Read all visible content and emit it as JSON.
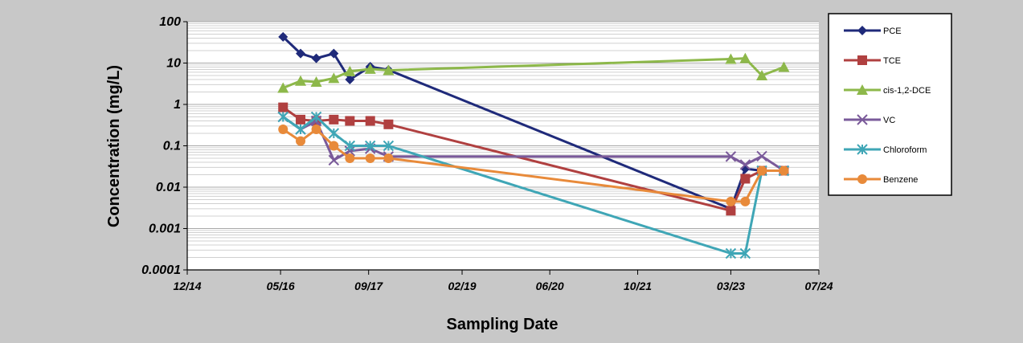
{
  "chart_data": {
    "type": "line",
    "xlabel": "Sampling Date",
    "ylabel": "Concentration (mg/L)",
    "yscale": "log",
    "ylim": [
      0.0001,
      100
    ],
    "xlim": [
      "2014-12-01",
      "2024-07-01"
    ],
    "x_ticks": [
      "12/14",
      "05/16",
      "09/17",
      "02/19",
      "06/20",
      "10/21",
      "03/23",
      "07/24"
    ],
    "y_ticks": [
      "0.0001",
      "0.001",
      "0.01",
      "0.1",
      "1",
      "10",
      "100"
    ],
    "grid": true,
    "legend_position": "right",
    "series": [
      {
        "name": "PCE",
        "color": "#1f2a7a",
        "marker": "diamond",
        "points": [
          [
            "2016-05-15",
            43
          ],
          [
            "2016-08-20",
            17
          ],
          [
            "2016-11-15",
            13
          ],
          [
            "2017-02-20",
            17
          ],
          [
            "2017-05-20",
            4
          ],
          [
            "2017-09-10",
            8.2
          ],
          [
            "2017-12-20",
            6.8
          ],
          [
            "2023-03-01",
            0.003
          ],
          [
            "2023-05-20",
            0.028
          ],
          [
            "2023-08-20",
            0.025
          ],
          [
            "2023-12-20",
            0.025
          ]
        ]
      },
      {
        "name": "TCE",
        "color": "#b04040",
        "marker": "square",
        "points": [
          [
            "2016-05-15",
            0.85
          ],
          [
            "2016-08-20",
            0.43
          ],
          [
            "2016-11-15",
            0.4
          ],
          [
            "2017-02-20",
            0.43
          ],
          [
            "2017-05-20",
            0.4
          ],
          [
            "2017-09-10",
            0.4
          ],
          [
            "2017-12-20",
            0.33
          ],
          [
            "2023-03-01",
            0.0027
          ],
          [
            "2023-05-20",
            0.016
          ],
          [
            "2023-08-20",
            0.025
          ],
          [
            "2023-12-20",
            0.025
          ]
        ]
      },
      {
        "name": "cis-1,2-DCE",
        "color": "#8db84a",
        "marker": "triangle",
        "points": [
          [
            "2016-05-15",
            2.5
          ],
          [
            "2016-08-20",
            3.7
          ],
          [
            "2016-11-15",
            3.5
          ],
          [
            "2017-02-20",
            4.3
          ],
          [
            "2017-05-20",
            6.3
          ],
          [
            "2017-09-10",
            7.2
          ],
          [
            "2017-12-20",
            6.7
          ],
          [
            "2023-03-01",
            12.5
          ],
          [
            "2023-05-20",
            13
          ],
          [
            "2023-08-20",
            5
          ],
          [
            "2023-12-20",
            8
          ]
        ]
      },
      {
        "name": "VC",
        "color": "#7a5a9a",
        "marker": "x",
        "points": [
          [
            "2016-05-15",
            0.5
          ],
          [
            "2016-08-20",
            0.25
          ],
          [
            "2016-11-15",
            0.4
          ],
          [
            "2017-02-20",
            0.045
          ],
          [
            "2017-05-20",
            0.075
          ],
          [
            "2017-09-10",
            0.085
          ],
          [
            "2017-12-20",
            0.055
          ],
          [
            "2023-03-01",
            0.055
          ],
          [
            "2023-05-20",
            0.035
          ],
          [
            "2023-08-20",
            0.056
          ],
          [
            "2023-12-20",
            0.025
          ]
        ]
      },
      {
        "name": "Chloroform",
        "color": "#3fa6b6",
        "marker": "asterisk",
        "points": [
          [
            "2016-05-15",
            0.5
          ],
          [
            "2016-08-20",
            0.25
          ],
          [
            "2016-11-15",
            0.5
          ],
          [
            "2017-02-20",
            0.2
          ],
          [
            "2017-05-20",
            0.1
          ],
          [
            "2017-09-10",
            0.1
          ],
          [
            "2017-12-20",
            0.1
          ],
          [
            "2023-03-01",
            0.00025
          ],
          [
            "2023-05-20",
            0.00025
          ],
          [
            "2023-08-20",
            0.025
          ],
          [
            "2023-12-20",
            0.025
          ]
        ]
      },
      {
        "name": "Benzene",
        "color": "#e88a3a",
        "marker": "circle",
        "points": [
          [
            "2016-05-15",
            0.25
          ],
          [
            "2016-08-20",
            0.13
          ],
          [
            "2016-11-15",
            0.25
          ],
          [
            "2017-02-20",
            0.1
          ],
          [
            "2017-05-20",
            0.05
          ],
          [
            "2017-09-10",
            0.05
          ],
          [
            "2017-12-20",
            0.05
          ],
          [
            "2023-03-01",
            0.0045
          ],
          [
            "2023-05-20",
            0.0045
          ],
          [
            "2023-08-20",
            0.025
          ],
          [
            "2023-12-20",
            0.025
          ]
        ]
      }
    ]
  }
}
